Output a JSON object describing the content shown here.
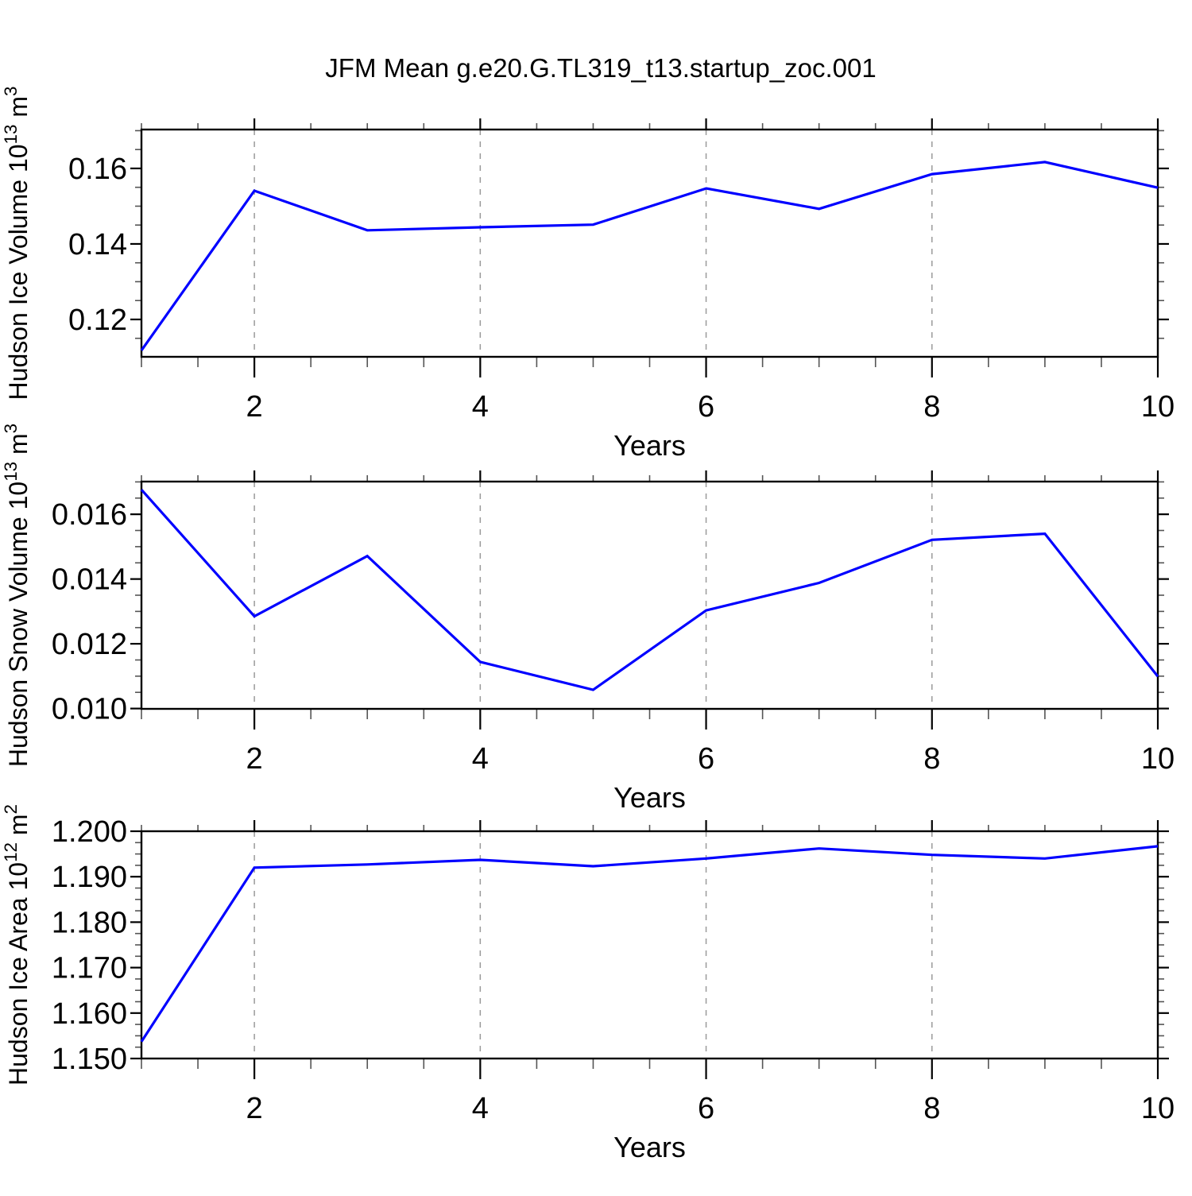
{
  "title": "JFM Mean g.e20.G.TL319_t13.startup_zoc.001",
  "colors": {
    "line": "#0000ff",
    "frame": "#000000",
    "grid": "#9a9a9a",
    "minor_tick": "#555555",
    "text": "#000000",
    "background": "#ffffff"
  },
  "chart_data": [
    {
      "type": "line",
      "panel": 1,
      "ylabel": "Hudson Ice Volume 10^13 m^3",
      "ylabel_parts": [
        {
          "text": "Hudson Ice Volume 10"
        },
        {
          "text": "13",
          "sup": true
        },
        {
          "text": " m"
        },
        {
          "text": "3",
          "sup": true
        }
      ],
      "xlabel": "Years",
      "x": [
        1,
        2,
        3,
        4,
        5,
        6,
        7,
        8,
        9,
        10
      ],
      "values": [
        0.1118,
        0.1541,
        0.1436,
        0.1444,
        0.1451,
        0.1547,
        0.1493,
        0.1585,
        0.1617,
        0.1549
      ],
      "xlim": [
        1,
        10
      ],
      "ylim": [
        0.1101,
        0.1703
      ],
      "xticks": [
        2,
        4,
        6,
        8,
        10
      ],
      "xtick_labels": [
        "2",
        "4",
        "6",
        "8",
        "10"
      ],
      "xminor_step": 0.5,
      "yticks": [
        0.12,
        0.14,
        0.16
      ],
      "ytick_labels": [
        "0.12",
        "0.14",
        "0.16"
      ],
      "yminor_step": 0.005,
      "grid_x": [
        2,
        4,
        6,
        8
      ],
      "grid_style": "dashed-vertical",
      "legend": "none"
    },
    {
      "type": "line",
      "panel": 2,
      "ylabel": "Hudson Snow Volume 10^13 m^3",
      "ylabel_parts": [
        {
          "text": "Hudson Snow Volume 10"
        },
        {
          "text": "13",
          "sup": true
        },
        {
          "text": " m"
        },
        {
          "text": "3",
          "sup": true
        }
      ],
      "xlabel": "Years",
      "x": [
        1,
        2,
        3,
        4,
        5,
        6,
        7,
        8,
        9,
        10
      ],
      "values": [
        0.01676,
        0.01285,
        0.01471,
        0.01144,
        0.01058,
        0.01303,
        0.01388,
        0.01521,
        0.0154,
        0.01099
      ],
      "xlim": [
        1,
        10
      ],
      "ylim": [
        0.00999,
        0.01701
      ],
      "xticks": [
        2,
        4,
        6,
        8,
        10
      ],
      "xtick_labels": [
        "2",
        "4",
        "6",
        "8",
        "10"
      ],
      "xminor_step": 0.5,
      "yticks": [
        0.01,
        0.012,
        0.014,
        0.016
      ],
      "ytick_labels": [
        "0.010",
        "0.012",
        "0.014",
        "0.016"
      ],
      "yminor_step": 0.0005,
      "grid_x": [
        2,
        4,
        6,
        8
      ],
      "grid_style": "dashed-vertical",
      "legend": "none"
    },
    {
      "type": "line",
      "panel": 3,
      "ylabel": "Hudson Ice Area 10^12 m^2",
      "ylabel_parts": [
        {
          "text": "Hudson Ice Area 10"
        },
        {
          "text": "12",
          "sup": true
        },
        {
          "text": " m"
        },
        {
          "text": "2",
          "sup": true
        }
      ],
      "xlabel": "Years",
      "x": [
        1,
        2,
        3,
        4,
        5,
        6,
        7,
        8,
        9,
        10
      ],
      "values": [
        1.1537,
        1.192,
        1.1927,
        1.1937,
        1.1923,
        1.194,
        1.1962,
        1.1948,
        1.194,
        1.1967
      ],
      "xlim": [
        1,
        10
      ],
      "ylim": [
        1.15,
        1.2
      ],
      "xticks": [
        2,
        4,
        6,
        8,
        10
      ],
      "xtick_labels": [
        "2",
        "4",
        "6",
        "8",
        "10"
      ],
      "xminor_step": 0.5,
      "yticks": [
        1.15,
        1.16,
        1.17,
        1.18,
        1.19,
        1.2
      ],
      "ytick_labels": [
        "1.150",
        "1.160",
        "1.170",
        "1.180",
        "1.190",
        "1.200"
      ],
      "yminor_step": 0.0025,
      "grid_x": [
        2,
        4,
        6,
        8
      ],
      "grid_style": "dashed-vertical",
      "legend": "none"
    }
  ]
}
